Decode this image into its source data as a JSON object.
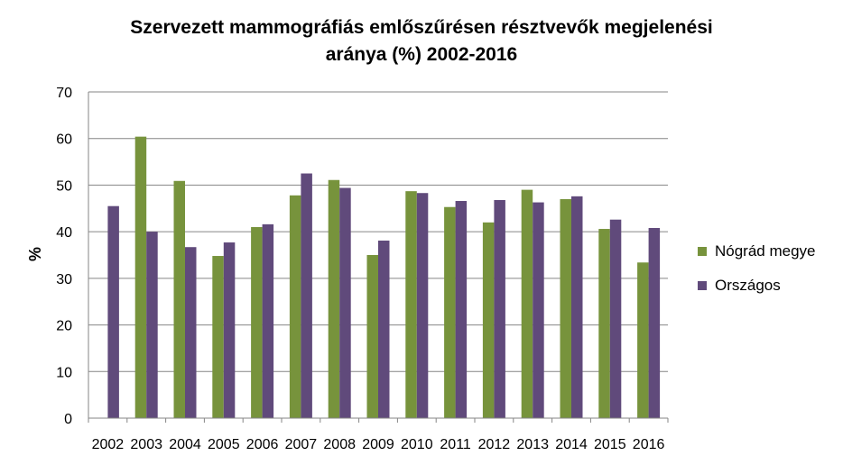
{
  "chart_data": {
    "type": "bar",
    "title_line1": "Szervezett mammográfiás  emlőszűrésen résztvevők megjelenési",
    "title_line2": "aránya (%) 2002-2016",
    "xlabel": "",
    "ylabel": "%",
    "ylim": [
      0,
      70
    ],
    "yticks": [
      0,
      10,
      20,
      30,
      40,
      50,
      60,
      70
    ],
    "categories": [
      "2002",
      "2003",
      "2004",
      "2005",
      "2006",
      "2007",
      "2008",
      "2009",
      "2010",
      "2011",
      "2012",
      "2013",
      "2014",
      "2015",
      "2016"
    ],
    "series": [
      {
        "name": "Nógrád megye",
        "color": "#77933c",
        "values": [
          null,
          60.4,
          50.9,
          34.8,
          41.0,
          47.8,
          51.1,
          35.0,
          48.7,
          45.3,
          42.0,
          49.0,
          47.0,
          40.6,
          33.4
        ]
      },
      {
        "name": "Országos",
        "color": "#604a7b",
        "values": [
          45.5,
          40.0,
          36.7,
          37.7,
          41.6,
          52.5,
          49.4,
          38.1,
          48.3,
          46.6,
          46.8,
          46.3,
          47.6,
          42.6,
          40.8
        ]
      }
    ],
    "grid": true,
    "legend_position": "right"
  }
}
